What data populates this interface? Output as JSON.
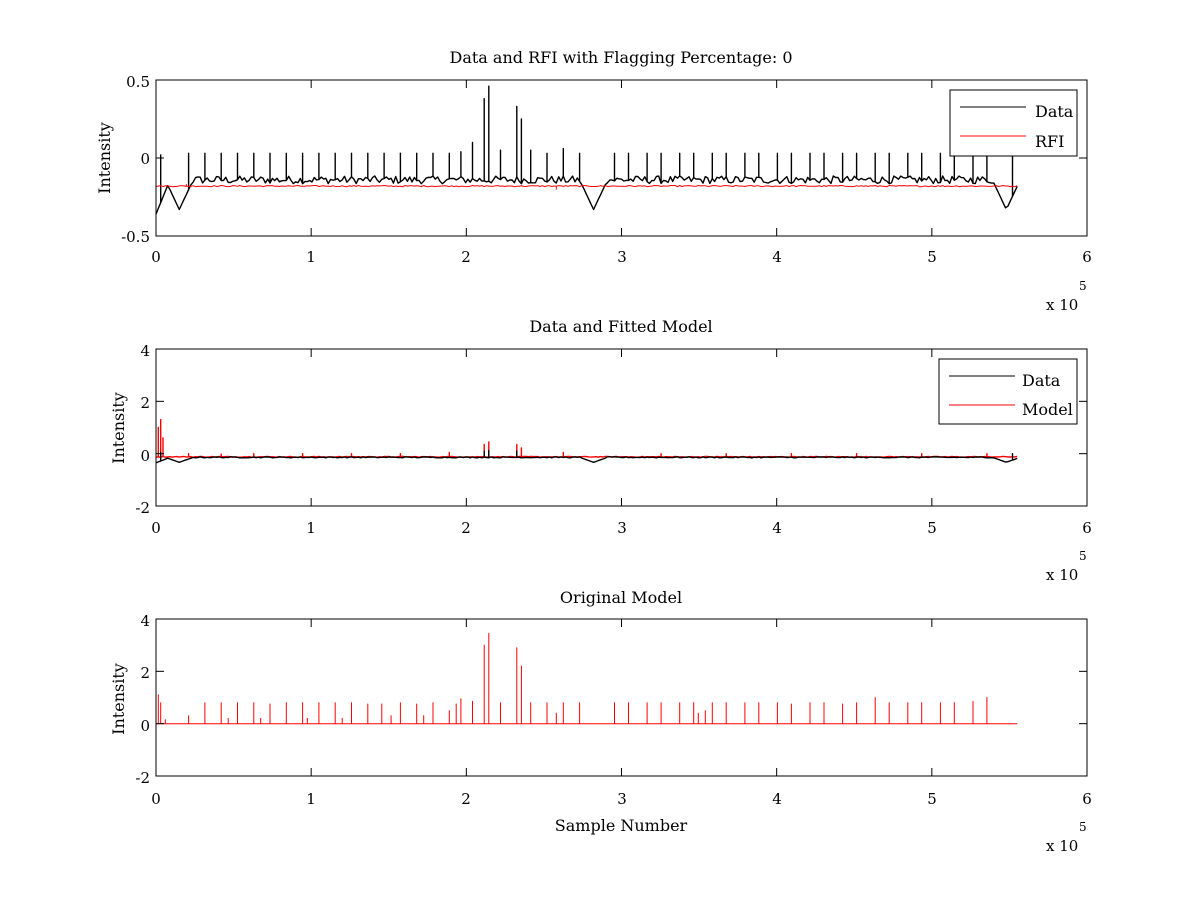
{
  "chart_data": [
    {
      "type": "line",
      "title": "Data and RFI with Flagging Percentage: 0",
      "xlabel": "",
      "ylabel": "Intensity",
      "xlim": [
        0,
        600000
      ],
      "ylim": [
        -0.5,
        0.5
      ],
      "xticks": [
        0,
        1,
        2,
        3,
        4,
        5,
        6
      ],
      "yticks": [
        -0.5,
        0,
        0.5
      ],
      "xtick_labels": [
        "0",
        "1",
        "2",
        "3",
        "4",
        "5",
        "6"
      ],
      "ytick_labels": [
        "-0.5",
        "0",
        "0.5"
      ],
      "exponent_prefix": "x 10",
      "exponent_power": "5",
      "grid": false,
      "legend_position": "top-right",
      "legend": [
        {
          "name": "Data",
          "color": "#000000"
        },
        {
          "name": "RFI",
          "color": "#ff0000"
        }
      ],
      "series": [
        {
          "name": "Data",
          "color": "#000000",
          "baseline": -0.14,
          "noise": 0.025,
          "x_end": 555000,
          "dips": [
            {
              "x": 0,
              "y": -0.36
            },
            {
              "x": 15000,
              "y": -0.33
            },
            {
              "x": 282000,
              "y": -0.33
            },
            {
              "x": 548000,
              "y": -0.33
            }
          ],
          "spikes": [
            {
              "x": 3000,
              "y": 0.02
            },
            {
              "x": 21000,
              "y": 0.03
            },
            {
              "x": 31000,
              "y": 0.03
            },
            {
              "x": 42000,
              "y": 0.03
            },
            {
              "x": 52000,
              "y": 0.03
            },
            {
              "x": 63000,
              "y": 0.03
            },
            {
              "x": 73000,
              "y": 0.03
            },
            {
              "x": 84000,
              "y": 0.03
            },
            {
              "x": 94000,
              "y": 0.03
            },
            {
              "x": 105000,
              "y": 0.03
            },
            {
              "x": 115000,
              "y": 0.03
            },
            {
              "x": 126000,
              "y": 0.03
            },
            {
              "x": 136000,
              "y": 0.03
            },
            {
              "x": 147000,
              "y": 0.03
            },
            {
              "x": 157000,
              "y": 0.03
            },
            {
              "x": 168000,
              "y": 0.03
            },
            {
              "x": 178000,
              "y": 0.03
            },
            {
              "x": 189000,
              "y": 0.03
            },
            {
              "x": 196000,
              "y": 0.04
            },
            {
              "x": 204000,
              "y": 0.1
            },
            {
              "x": 211000,
              "y": 0.38
            },
            {
              "x": 215000,
              "y": 0.46
            },
            {
              "x": 222000,
              "y": 0.05
            },
            {
              "x": 232000,
              "y": 0.33
            },
            {
              "x": 236000,
              "y": 0.25
            },
            {
              "x": 242000,
              "y": 0.05
            },
            {
              "x": 252000,
              "y": 0.03
            },
            {
              "x": 262000,
              "y": 0.06
            },
            {
              "x": 273000,
              "y": 0.03
            },
            {
              "x": 295000,
              "y": 0.03
            },
            {
              "x": 305000,
              "y": 0.03
            },
            {
              "x": 316000,
              "y": 0.03
            },
            {
              "x": 326000,
              "y": 0.03
            },
            {
              "x": 337000,
              "y": 0.03
            },
            {
              "x": 347000,
              "y": 0.03
            },
            {
              "x": 358000,
              "y": 0.03
            },
            {
              "x": 368000,
              "y": 0.03
            },
            {
              "x": 379000,
              "y": 0.03
            },
            {
              "x": 389000,
              "y": 0.03
            },
            {
              "x": 400000,
              "y": 0.03
            },
            {
              "x": 410000,
              "y": 0.03
            },
            {
              "x": 421000,
              "y": 0.03
            },
            {
              "x": 431000,
              "y": 0.03
            },
            {
              "x": 442000,
              "y": 0.03
            },
            {
              "x": 452000,
              "y": 0.03
            },
            {
              "x": 463000,
              "y": 0.03
            },
            {
              "x": 473000,
              "y": 0.03
            },
            {
              "x": 484000,
              "y": 0.03
            },
            {
              "x": 494000,
              "y": 0.03
            },
            {
              "x": 505000,
              "y": 0.03
            },
            {
              "x": 515000,
              "y": 0.03
            },
            {
              "x": 526000,
              "y": 0.03
            },
            {
              "x": 536000,
              "y": 0.03
            },
            {
              "x": 552000,
              "y": 0.03
            }
          ]
        },
        {
          "name": "RFI",
          "color": "#ff0000",
          "baseline": -0.18,
          "noise": 0.004,
          "x_end": 555000,
          "dips": [],
          "spikes": [
            {
              "x": 20000,
              "y": -0.17
            },
            {
              "x": 258000,
              "y": -0.2
            }
          ]
        }
      ]
    },
    {
      "type": "line",
      "title": "Data and Fitted Model",
      "xlabel": "",
      "ylabel": "Intensity",
      "xlim": [
        0,
        600000
      ],
      "ylim": [
        -2,
        4
      ],
      "xticks": [
        0,
        1,
        2,
        3,
        4,
        5,
        6
      ],
      "yticks": [
        -2,
        0,
        2,
        4
      ],
      "xtick_labels": [
        "0",
        "1",
        "2",
        "3",
        "4",
        "5",
        "6"
      ],
      "ytick_labels": [
        "-2",
        "0",
        "2",
        "4"
      ],
      "exponent_prefix": "x 10",
      "exponent_power": "5",
      "grid": false,
      "legend_position": "top-right",
      "legend": [
        {
          "name": "Data",
          "color": "#000000"
        },
        {
          "name": "Model",
          "color": "#ff0000"
        }
      ],
      "series": [
        {
          "name": "Model",
          "color": "#ff0000",
          "baseline": -0.12,
          "noise": 0.015,
          "x_end": 555000,
          "dips": [],
          "spikes": [
            {
              "x": 1500,
              "y": 1.0
            },
            {
              "x": 3000,
              "y": 1.3
            },
            {
              "x": 4500,
              "y": 0.6
            },
            {
              "x": 21000,
              "y": 0.0
            },
            {
              "x": 42000,
              "y": -0.02
            },
            {
              "x": 63000,
              "y": 0.0
            },
            {
              "x": 94000,
              "y": 0.0
            },
            {
              "x": 126000,
              "y": 0.0
            },
            {
              "x": 157000,
              "y": 0.0
            },
            {
              "x": 189000,
              "y": 0.05
            },
            {
              "x": 211000,
              "y": 0.35
            },
            {
              "x": 215000,
              "y": 0.45
            },
            {
              "x": 232000,
              "y": 0.35
            },
            {
              "x": 236000,
              "y": 0.22
            },
            {
              "x": 262000,
              "y": 0.05
            },
            {
              "x": 326000,
              "y": 0.0
            },
            {
              "x": 368000,
              "y": 0.0
            },
            {
              "x": 410000,
              "y": 0.0
            },
            {
              "x": 452000,
              "y": 0.0
            },
            {
              "x": 494000,
              "y": 0.0
            },
            {
              "x": 536000,
              "y": 0.0
            }
          ]
        },
        {
          "name": "Data",
          "color": "#000000",
          "baseline": -0.14,
          "noise": 0.02,
          "x_end": 555000,
          "dips": [
            {
              "x": 0,
              "y": -0.35
            },
            {
              "x": 15000,
              "y": -0.33
            },
            {
              "x": 282000,
              "y": -0.33
            },
            {
              "x": 548000,
              "y": -0.33
            }
          ],
          "spikes": [
            {
              "x": 3000,
              "y": 0.05
            },
            {
              "x": 211000,
              "y": 0.1
            },
            {
              "x": 215000,
              "y": 0.12
            },
            {
              "x": 232000,
              "y": 0.1
            },
            {
              "x": 552000,
              "y": 0.0
            }
          ]
        }
      ]
    },
    {
      "type": "line",
      "title": "Original Model",
      "xlabel": "Sample Number",
      "ylabel": "Intensity",
      "xlim": [
        0,
        600000
      ],
      "ylim": [
        -2,
        4
      ],
      "xticks": [
        0,
        1,
        2,
        3,
        4,
        5,
        6
      ],
      "yticks": [
        -2,
        0,
        2,
        4
      ],
      "xtick_labels": [
        "0",
        "1",
        "2",
        "3",
        "4",
        "5",
        "6"
      ],
      "ytick_labels": [
        "-2",
        "0",
        "2",
        "4"
      ],
      "exponent_prefix": "x 10",
      "exponent_power": "5",
      "grid": false,
      "legend_position": "none",
      "legend": [],
      "series": [
        {
          "name": "Model",
          "color": "#ff0000",
          "baseline": 0.0,
          "noise": 0.0,
          "x_end": 555000,
          "dips": [],
          "spikes": [
            {
              "x": 1500,
              "y": 1.1
            },
            {
              "x": 3000,
              "y": 0.8
            },
            {
              "x": 5500,
              "y": 0.15
            },
            {
              "x": 21000,
              "y": 0.3
            },
            {
              "x": 31000,
              "y": 0.8
            },
            {
              "x": 42000,
              "y": 0.8
            },
            {
              "x": 46000,
              "y": 0.2
            },
            {
              "x": 52000,
              "y": 0.8
            },
            {
              "x": 63000,
              "y": 0.8
            },
            {
              "x": 68000,
              "y": 0.2
            },
            {
              "x": 73000,
              "y": 0.75
            },
            {
              "x": 84000,
              "y": 0.8
            },
            {
              "x": 94000,
              "y": 0.8
            },
            {
              "x": 98000,
              "y": 0.2
            },
            {
              "x": 105000,
              "y": 0.8
            },
            {
              "x": 115000,
              "y": 0.8
            },
            {
              "x": 120000,
              "y": 0.2
            },
            {
              "x": 126000,
              "y": 0.8
            },
            {
              "x": 136000,
              "y": 0.75
            },
            {
              "x": 145000,
              "y": 0.75
            },
            {
              "x": 152000,
              "y": 0.3
            },
            {
              "x": 157000,
              "y": 0.8
            },
            {
              "x": 168000,
              "y": 0.75
            },
            {
              "x": 172000,
              "y": 0.3
            },
            {
              "x": 178000,
              "y": 0.8
            },
            {
              "x": 189000,
              "y": 0.5
            },
            {
              "x": 193000,
              "y": 0.75
            },
            {
              "x": 196000,
              "y": 0.95
            },
            {
              "x": 204000,
              "y": 0.85
            },
            {
              "x": 211000,
              "y": 3.0
            },
            {
              "x": 215000,
              "y": 3.45
            },
            {
              "x": 222000,
              "y": 0.8
            },
            {
              "x": 232000,
              "y": 2.9
            },
            {
              "x": 236000,
              "y": 2.2
            },
            {
              "x": 242000,
              "y": 0.8
            },
            {
              "x": 252000,
              "y": 0.8
            },
            {
              "x": 258000,
              "y": 0.4
            },
            {
              "x": 262000,
              "y": 0.8
            },
            {
              "x": 273000,
              "y": 0.8
            },
            {
              "x": 295000,
              "y": 0.8
            },
            {
              "x": 305000,
              "y": 0.8
            },
            {
              "x": 316000,
              "y": 0.8
            },
            {
              "x": 326000,
              "y": 0.8
            },
            {
              "x": 337000,
              "y": 0.8
            },
            {
              "x": 347000,
              "y": 0.8
            },
            {
              "x": 350000,
              "y": 0.4
            },
            {
              "x": 354000,
              "y": 0.5
            },
            {
              "x": 358000,
              "y": 0.8
            },
            {
              "x": 368000,
              "y": 0.8
            },
            {
              "x": 379000,
              "y": 0.8
            },
            {
              "x": 389000,
              "y": 0.8
            },
            {
              "x": 400000,
              "y": 0.8
            },
            {
              "x": 410000,
              "y": 0.75
            },
            {
              "x": 421000,
              "y": 0.8
            },
            {
              "x": 431000,
              "y": 0.8
            },
            {
              "x": 442000,
              "y": 0.75
            },
            {
              "x": 452000,
              "y": 0.8
            },
            {
              "x": 463000,
              "y": 1.0
            },
            {
              "x": 473000,
              "y": 0.8
            },
            {
              "x": 484000,
              "y": 0.8
            },
            {
              "x": 494000,
              "y": 0.8
            },
            {
              "x": 505000,
              "y": 0.8
            },
            {
              "x": 515000,
              "y": 0.8
            },
            {
              "x": 526000,
              "y": 0.85
            },
            {
              "x": 536000,
              "y": 1.0
            }
          ]
        }
      ]
    }
  ]
}
